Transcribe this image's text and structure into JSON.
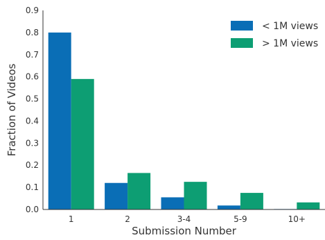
{
  "chart_data": {
    "type": "bar",
    "title": "",
    "xlabel": "Submission Number",
    "ylabel": "Fraction of Videos",
    "categories": [
      "1",
      "2",
      "3-4",
      "5-9",
      "10+"
    ],
    "ylim": [
      0,
      0.9
    ],
    "yticks": [
      "0.0",
      "0.1",
      "0.2",
      "0.3",
      "0.4",
      "0.5",
      "0.6",
      "0.7",
      "0.8",
      "0.9"
    ],
    "grid": false,
    "legend_position": "top-right",
    "series": [
      {
        "name": "< 1M views",
        "color": "#0a6eb6",
        "values": [
          0.8,
          0.12,
          0.055,
          0.018,
          0.002
        ]
      },
      {
        "name": "> 1M views",
        "color": "#0d9e73",
        "values": [
          0.59,
          0.165,
          0.125,
          0.075,
          0.032
        ]
      }
    ]
  }
}
